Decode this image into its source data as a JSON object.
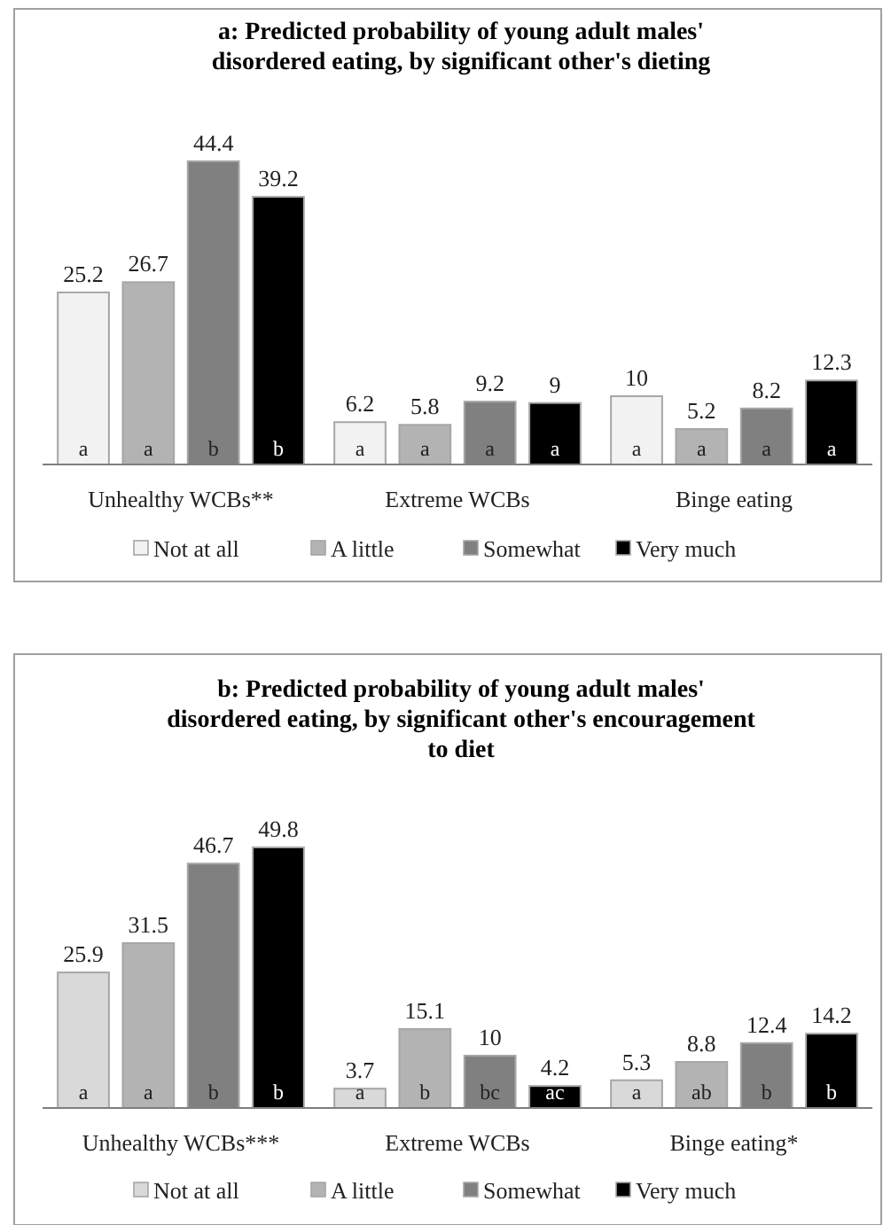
{
  "chart_data": [
    {
      "type": "bar",
      "title": "a:  Predicted probability of young adult males' disordered eating, by significant other's dieting",
      "categories": [
        "Unhealthy WCBs**",
        "Extreme WCBs",
        "Binge eating"
      ],
      "series": [
        {
          "name": "Not at all",
          "color": "#f2f2f2",
          "values": [
            25.2,
            6.2,
            10
          ]
        },
        {
          "name": "A little",
          "color": "#b3b3b3",
          "values": [
            26.7,
            5.8,
            5.2
          ]
        },
        {
          "name": "Somewhat",
          "color": "#808080",
          "values": [
            44.4,
            9.2,
            8.2
          ]
        },
        {
          "name": "Very much",
          "color": "#000000",
          "values": [
            39.2,
            9,
            12.3
          ]
        }
      ],
      "data_labels": true,
      "legend": "bottom",
      "annotations": [
        "a",
        "a",
        "b",
        "b",
        "a",
        "a",
        "a",
        "a",
        "a",
        "a",
        "a",
        "a"
      ]
    },
    {
      "type": "bar",
      "title": "b: Predicted probability of young adult males' disordered eating, by significant other's encouragement to diet",
      "categories": [
        "Unhealthy WCBs***",
        "Extreme WCBs",
        "Binge eating*"
      ],
      "series": [
        {
          "name": "Not at all",
          "color": "#d9d9d9",
          "values": [
            25.9,
            3.7,
            5.3
          ]
        },
        {
          "name": "A little",
          "color": "#b3b3b3",
          "values": [
            31.5,
            15.1,
            8.8
          ]
        },
        {
          "name": "Somewhat",
          "color": "#808080",
          "values": [
            46.7,
            10,
            12.4
          ]
        },
        {
          "name": "Very much",
          "color": "#000000",
          "values": [
            49.8,
            4.2,
            14.2
          ]
        }
      ],
      "data_labels": true,
      "legend": "bottom",
      "annotations": [
        "a",
        "a",
        "b",
        "b",
        "a",
        "b",
        "bc",
        "ac",
        "a",
        "ab",
        "b",
        "b"
      ]
    }
  ]
}
